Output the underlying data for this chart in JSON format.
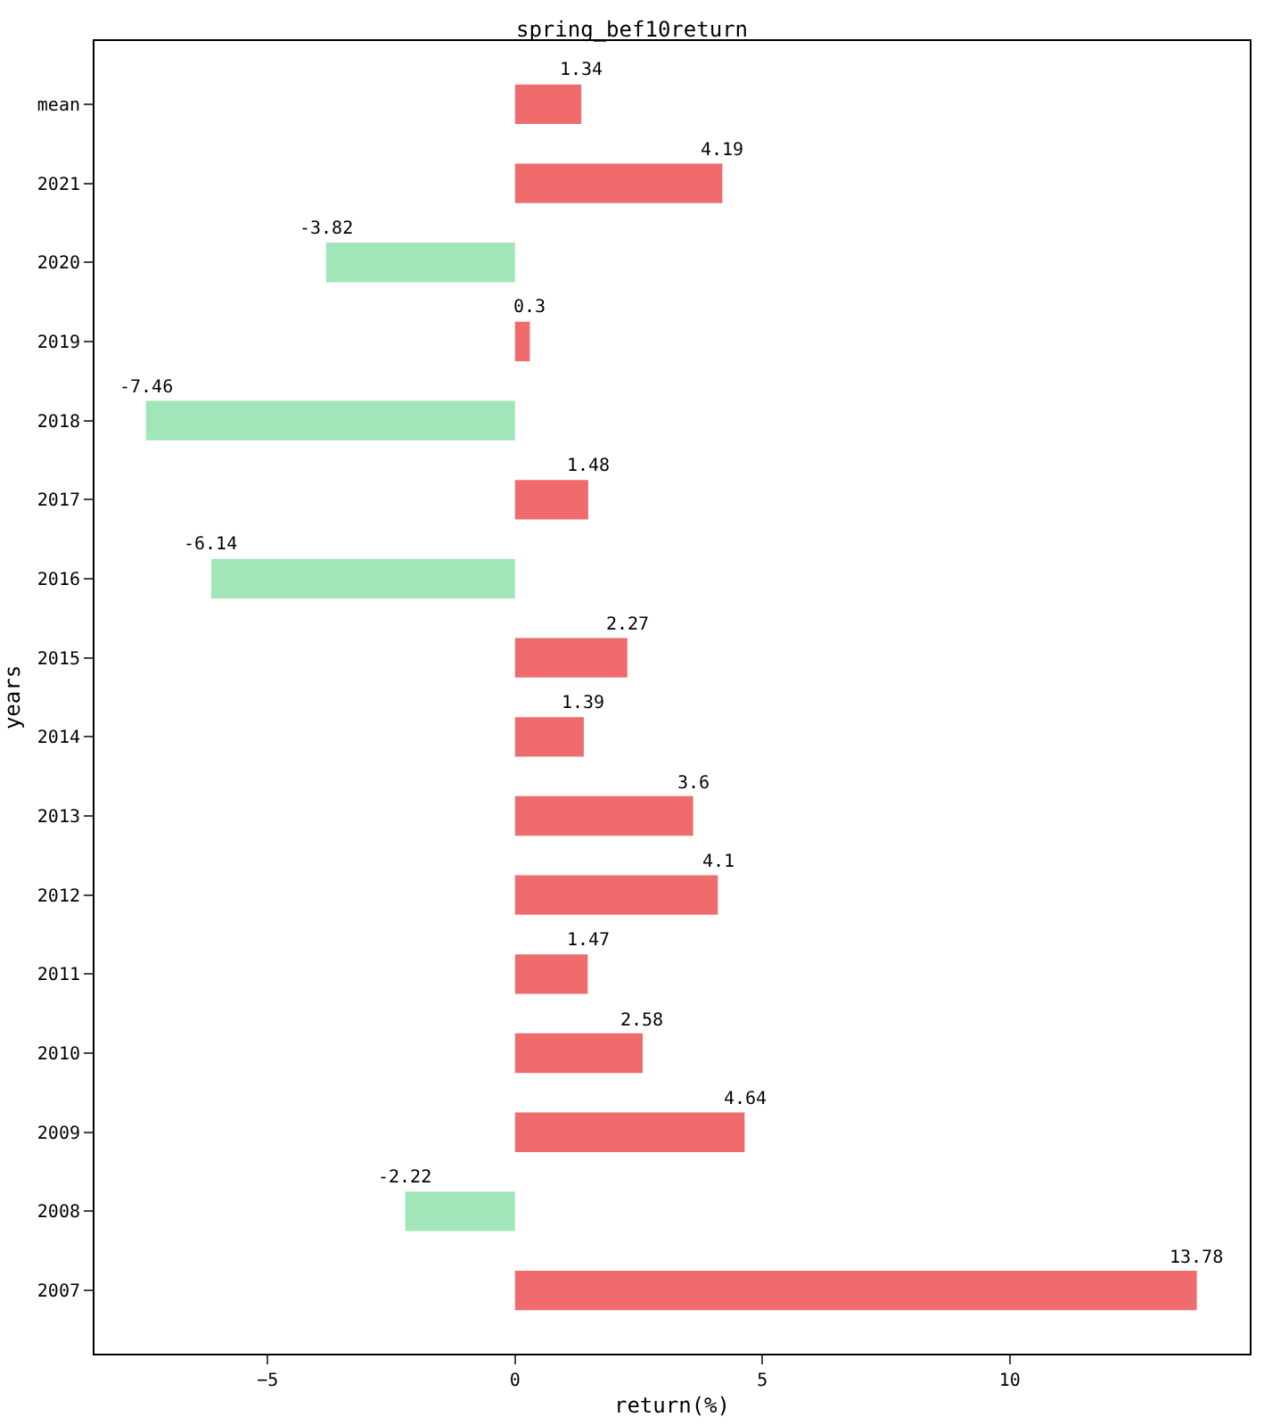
{
  "chart_data": {
    "type": "bar",
    "orientation": "horizontal",
    "title": "spring_bef10return",
    "xlabel": "return(%)",
    "ylabel": "years",
    "categories": [
      "mean",
      "2021",
      "2020",
      "2019",
      "2018",
      "2017",
      "2016",
      "2015",
      "2014",
      "2013",
      "2012",
      "2011",
      "2010",
      "2009",
      "2008",
      "2007"
    ],
    "values": [
      1.34,
      4.19,
      -3.82,
      0.3,
      -7.46,
      1.48,
      -6.14,
      2.27,
      1.39,
      3.6,
      4.1,
      1.47,
      2.58,
      4.64,
      -2.22,
      13.78
    ],
    "colors": [
      "#f06b6b",
      "#f06b6b",
      "#a0e6b8",
      "#f06b6b",
      "#a0e6b8",
      "#f06b6b",
      "#a0e6b8",
      "#f06b6b",
      "#f06b6b",
      "#f06b6b",
      "#f06b6b",
      "#f06b6b",
      "#f06b6b",
      "#f06b6b",
      "#a0e6b8",
      "#f06b6b"
    ],
    "xlim": [
      -8.5,
      14.85
    ],
    "xticks": [
      {
        "value": -5,
        "label": "−5"
      },
      0,
      5,
      10
    ],
    "data_labels": true
  }
}
